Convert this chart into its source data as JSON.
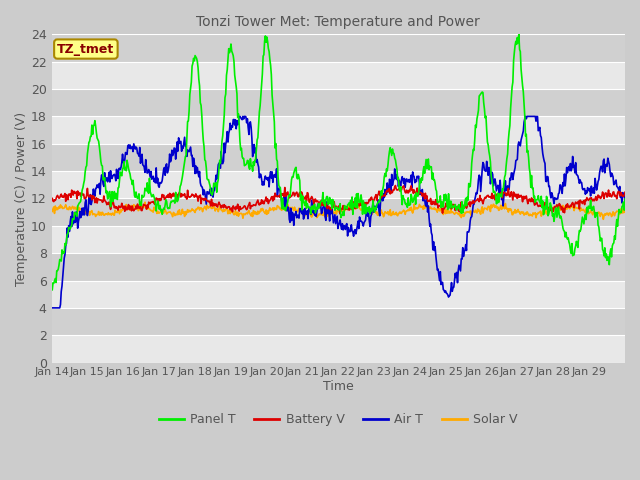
{
  "title": "Tonzi Tower Met: Temperature and Power",
  "xlabel": "Time",
  "ylabel": "Temperature (C) / Power (V)",
  "ylim": [
    0,
    24
  ],
  "yticks": [
    0,
    2,
    4,
    6,
    8,
    10,
    12,
    14,
    16,
    18,
    20,
    22,
    24
  ],
  "x_labels": [
    "Jan 14",
    "Jan 15",
    "Jan 16",
    "Jan 17",
    "Jan 18",
    "Jan 19",
    "Jan 20",
    "Jan 21",
    "Jan 22",
    "Jan 23",
    "Jan 24",
    "Jan 25",
    "Jan 26",
    "Jan 27",
    "Jan 28",
    "Jan 29"
  ],
  "annotation_text": "TZ_tmet",
  "annotation_box_facecolor": "#ffff88",
  "annotation_text_color": "#880000",
  "annotation_edge_color": "#aa8800",
  "legend_items": [
    "Panel T",
    "Battery V",
    "Air T",
    "Solar V"
  ],
  "line_colors": {
    "panel": "#00ee00",
    "battery": "#dd0000",
    "air": "#0000cc",
    "solar": "#ffaa00"
  },
  "fig_facecolor": "#cccccc",
  "ax_facecolor": "#dddddd",
  "band_light": "#e8e8e8",
  "band_dark": "#d0d0d0",
  "title_color": "#555555",
  "label_color": "#555555",
  "tick_color": "#555555"
}
